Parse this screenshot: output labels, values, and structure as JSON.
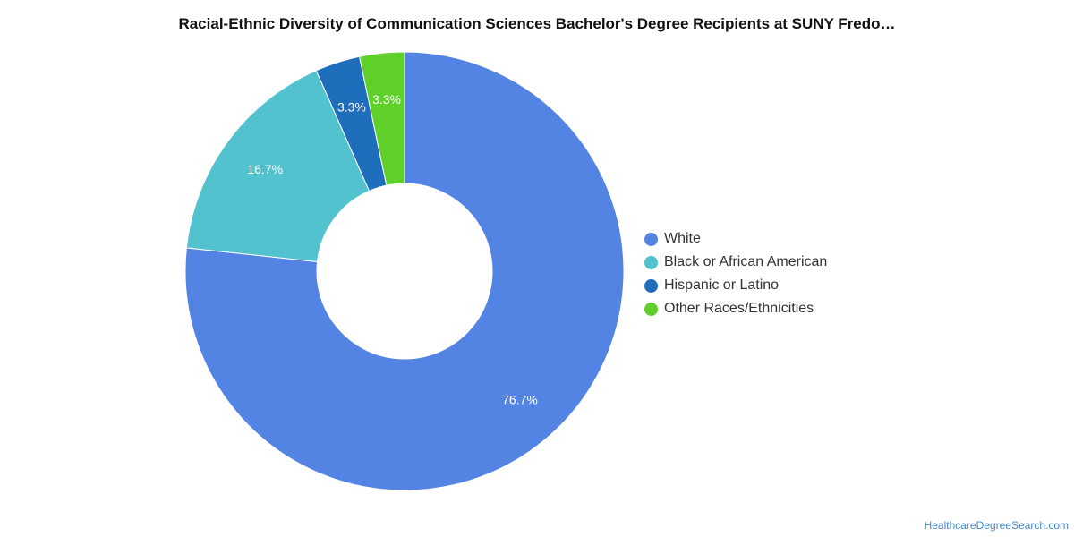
{
  "chart_data": {
    "type": "pie",
    "title": "Racial-Ethnic Diversity of Communication Sciences Bachelor's Degree Recipients at SUNY Fredo…",
    "donut": true,
    "legend_position": "right",
    "slices": [
      {
        "label": "White",
        "value": 76.7,
        "value_label": "76.7%",
        "color": "#5484e3"
      },
      {
        "label": "Black or African American",
        "value": 16.7,
        "value_label": "16.7%",
        "color": "#52c2cf"
      },
      {
        "label": "Hispanic or Latino",
        "value": 3.3,
        "value_label": "3.3%",
        "color": "#1f6ebb"
      },
      {
        "label": "Other Races/Ethnicities",
        "value": 3.3,
        "value_label": "3.3%",
        "color": "#5fd02a"
      }
    ]
  },
  "credit": "HealthcareDegreeSearch.com"
}
